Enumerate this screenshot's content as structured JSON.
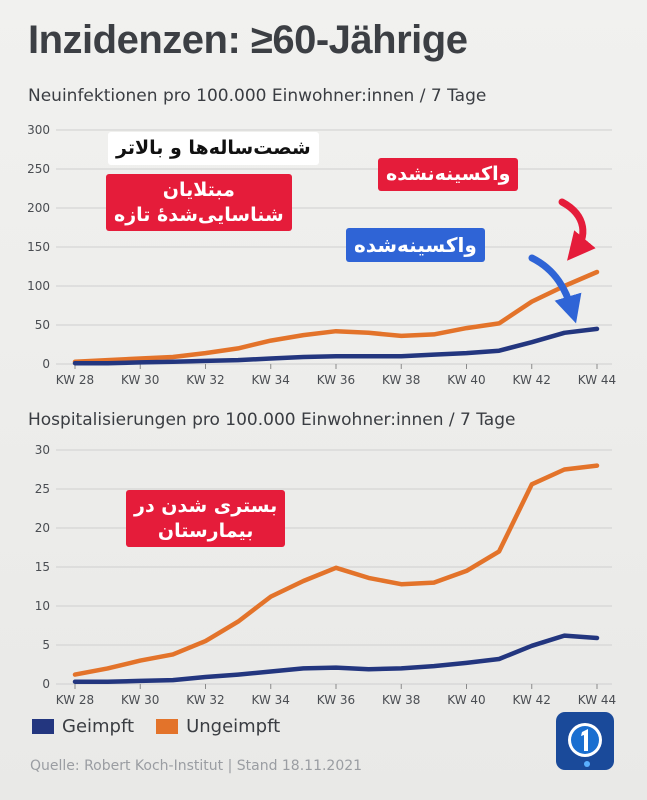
{
  "header": {
    "title": "Inzidenzen: ≥60-Jährige"
  },
  "annotations": {
    "age_group": "شصت‌ساله‌ها و بالاتر",
    "new_infections": [
      "مبتلایان",
      "شناسایی‌شدهٔ تازه"
    ],
    "unvaccinated": "واکسینه‌نشده",
    "vaccinated": "واکسینه‌شده",
    "hospitalized": [
      "بستری شدن در",
      "بیمارستان"
    ]
  },
  "legend": {
    "vaccinated": "Geimpft",
    "unvaccinated": "Ungeimpft"
  },
  "colors": {
    "vaccinated": "#23367f",
    "unvaccinated": "#e3732a",
    "red_label": "#e51c3a",
    "blue_label": "#2f64d6"
  },
  "footer": {
    "source": "Quelle: Robert Koch-Institut | Stand 18.11.2021"
  },
  "chart_data": [
    {
      "type": "line",
      "title": "Neuinfektionen pro 100.000 Einwohner:innen / 7 Tage",
      "x": [
        "KW 28",
        "KW 29",
        "KW 30",
        "KW 31",
        "KW 32",
        "KW 33",
        "KW 34",
        "KW 35",
        "KW 36",
        "KW 37",
        "KW 38",
        "KW 39",
        "KW 40",
        "KW 41",
        "KW 42",
        "KW 43",
        "KW 44"
      ],
      "x_tick_labels": [
        "KW 28",
        "KW 30",
        "KW 32",
        "KW 34",
        "KW 36",
        "KW 38",
        "KW 40",
        "KW 42",
        "KW 44"
      ],
      "ylim": [
        0,
        300
      ],
      "y_ticks": [
        0,
        50,
        100,
        150,
        200,
        250,
        300
      ],
      "grid": true,
      "series": [
        {
          "name": "Ungeimpft",
          "values": [
            3,
            5,
            7,
            9,
            14,
            20,
            30,
            37,
            42,
            40,
            36,
            38,
            46,
            52,
            80,
            100,
            118
          ]
        },
        {
          "name": "Geimpft",
          "values": [
            1,
            1,
            2,
            3,
            4,
            5,
            7,
            9,
            10,
            10,
            10,
            12,
            14,
            17,
            28,
            40,
            45
          ]
        }
      ]
    },
    {
      "type": "line",
      "title": "Hospitalisierungen pro 100.000 Einwohner:innen / 7 Tage",
      "x": [
        "KW 28",
        "KW 29",
        "KW 30",
        "KW 31",
        "KW 32",
        "KW 33",
        "KW 34",
        "KW 35",
        "KW 36",
        "KW 37",
        "KW 38",
        "KW 39",
        "KW 40",
        "KW 41",
        "KW 42",
        "KW 43",
        "KW 44"
      ],
      "x_tick_labels": [
        "KW 28",
        "KW 30",
        "KW 32",
        "KW 34",
        "KW 36",
        "KW 38",
        "KW 40",
        "KW 42",
        "KW 44"
      ],
      "ylim": [
        0,
        30
      ],
      "y_ticks": [
        0,
        5,
        10,
        15,
        20,
        25,
        30
      ],
      "grid": true,
      "series": [
        {
          "name": "Ungeimpft",
          "values": [
            1.2,
            2.0,
            3.0,
            3.8,
            5.5,
            8.0,
            11.2,
            13.2,
            14.9,
            13.6,
            12.8,
            13.0,
            14.5,
            17.0,
            25.6,
            27.5,
            28.0
          ]
        },
        {
          "name": "Geimpft",
          "values": [
            0.3,
            0.3,
            0.4,
            0.5,
            0.9,
            1.2,
            1.6,
            2.0,
            2.1,
            1.9,
            2.0,
            2.3,
            2.7,
            3.2,
            4.9,
            6.2,
            5.9
          ]
        }
      ]
    }
  ]
}
